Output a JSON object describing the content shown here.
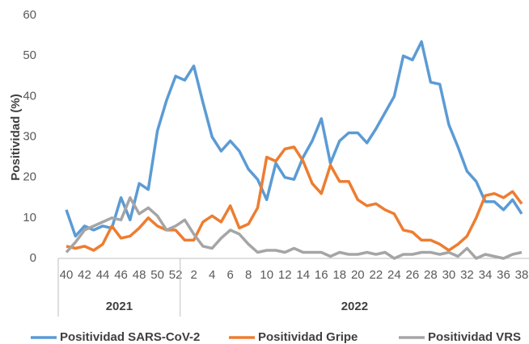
{
  "chart_data": {
    "type": "line",
    "y_label": "Positividad (%)",
    "categories": [
      "40",
      null,
      "42",
      null,
      "44",
      null,
      "46",
      null,
      "48",
      null,
      "50",
      null,
      "52",
      null,
      "2",
      null,
      "4",
      null,
      "6",
      null,
      "8",
      null,
      "10",
      null,
      "12",
      null,
      "14",
      null,
      "16",
      null,
      "18",
      null,
      "20",
      null,
      "22",
      null,
      "24",
      null,
      "26",
      null,
      "28",
      null,
      "30",
      null,
      "32",
      null,
      "34",
      null,
      "36",
      null,
      "38"
    ],
    "x_groups": [
      "2021",
      "2022"
    ],
    "series": [
      {
        "name": "Positividad SARS-CoV-2",
        "color": "#5b9bd5",
        "values": [
          12,
          5.5,
          8,
          7,
          8,
          7.5,
          15,
          9.5,
          18.5,
          17,
          31.5,
          39,
          45,
          44,
          47.5,
          38.5,
          30,
          26.5,
          29,
          26.5,
          22,
          19.5,
          14.5,
          23.5,
          20,
          19.5,
          25,
          29,
          34.5,
          23.5,
          29,
          31,
          31,
          28.5,
          32,
          36,
          40,
          50,
          49,
          53.5,
          43.5,
          43,
          33,
          27.5,
          21.5,
          19,
          14,
          14,
          12,
          14.5,
          11
        ]
      },
      {
        "name": "Positividad Gripe",
        "color": "#ed7d31",
        "values": [
          3,
          2.5,
          3,
          2,
          3.5,
          8,
          5,
          5.5,
          7.5,
          10,
          8,
          7,
          7,
          4.5,
          4.5,
          9,
          10.5,
          9,
          13,
          7.5,
          8.5,
          12.5,
          25,
          24,
          27,
          27.5,
          24,
          18.5,
          16,
          23,
          19,
          19,
          14.5,
          13,
          13.5,
          12,
          11,
          7,
          6.5,
          4.5,
          4.5,
          3.5,
          2,
          3.5,
          5.5,
          10,
          15.5,
          16,
          15,
          16.5,
          13.5
        ]
      },
      {
        "name": "Positividad VRS",
        "color": "#a5a5a5",
        "values": [
          1.5,
          4,
          7,
          8,
          9,
          10,
          9.5,
          15,
          11,
          12.5,
          10.5,
          7,
          8,
          9.5,
          6,
          3,
          2.5,
          5,
          7,
          6,
          3.5,
          1.5,
          2,
          2,
          1.5,
          2.5,
          1.5,
          1.5,
          1.5,
          0.5,
          1.5,
          1,
          1,
          1.5,
          1,
          1.5,
          0,
          1,
          1,
          1.5,
          1.5,
          1,
          1.5,
          0.5,
          2.5,
          0,
          1,
          0.5,
          0,
          1,
          1.5
        ]
      }
    ],
    "ylim": [
      0,
      60
    ],
    "yticks": [
      0,
      10,
      20,
      30,
      40,
      50,
      60
    ],
    "grid": false,
    "legend": "bottom"
  }
}
